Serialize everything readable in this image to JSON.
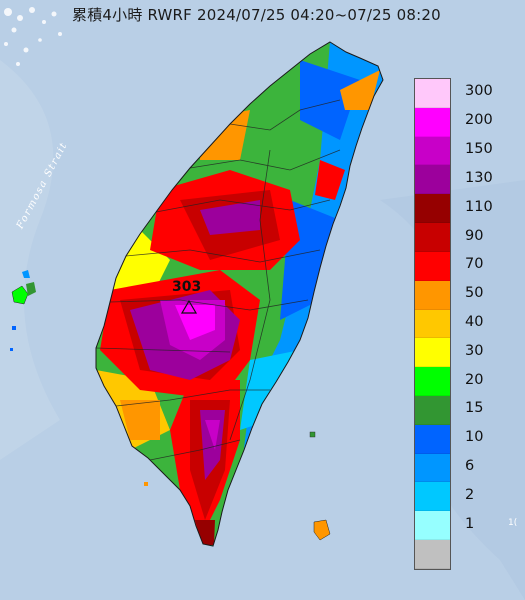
{
  "title": "累積4小時 RWRF 2024/07/25 04:20~07/25 08:20",
  "strait_label": "Formosa Strait",
  "max_value_label": "303",
  "corner_text": "1(",
  "legend": {
    "items": [
      {
        "label": "300",
        "color": "#ffc8fa"
      },
      {
        "label": "200",
        "color": "#ff00ff"
      },
      {
        "label": "150",
        "color": "#c800c8"
      },
      {
        "label": "130",
        "color": "#9c009c"
      },
      {
        "label": "110",
        "color": "#960000"
      },
      {
        "label": "90",
        "color": "#c80000"
      },
      {
        "label": "70",
        "color": "#ff0000"
      },
      {
        "label": "50",
        "color": "#ff9600"
      },
      {
        "label": "40",
        "color": "#ffc800"
      },
      {
        "label": "30",
        "color": "#ffff00"
      },
      {
        "label": "20",
        "color": "#00ff00"
      },
      {
        "label": "15",
        "color": "#329632"
      },
      {
        "label": "10",
        "color": "#0064ff"
      },
      {
        "label": "6",
        "color": "#0096ff"
      },
      {
        "label": "2",
        "color": "#00c8ff"
      },
      {
        "label": "1",
        "color": "#96ffff"
      },
      {
        "label": "",
        "color": "#c0c0c0"
      }
    ]
  },
  "colors": {
    "sea": "#b9cfe6",
    "land_base": "#3cb43c"
  }
}
